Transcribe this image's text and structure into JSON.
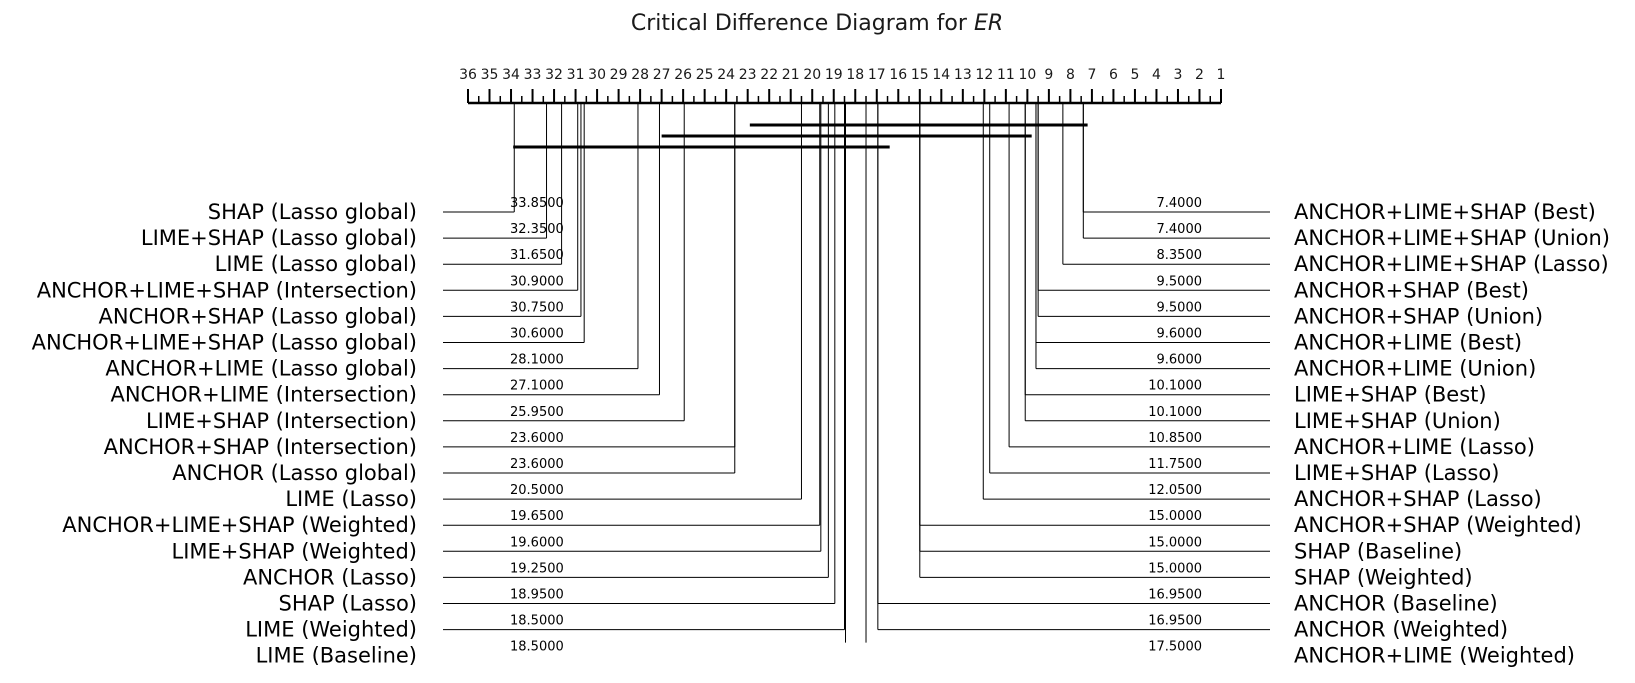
{
  "chart_data": {
    "type": "critical_difference_diagram",
    "title": "Critical Difference Diagram for",
    "title_emphasis": "ER",
    "axis": {
      "min": 1,
      "max": 36,
      "reversed": true,
      "tick_labels": [
        "36",
        "35",
        "34",
        "33",
        "32",
        "31",
        "30",
        "29",
        "28",
        "27",
        "26",
        "25",
        "24",
        "23",
        "22",
        "21",
        "20",
        "19",
        "18",
        "17",
        "16",
        "15",
        "14",
        "13",
        "12",
        "11",
        "10",
        "9",
        "8",
        "7",
        "6",
        "5",
        "4",
        "3",
        "2",
        "1"
      ]
    },
    "left_methods": [
      {
        "name": "SHAP (Lasso global)",
        "rank": 33.85,
        "rank_text": "33.8500"
      },
      {
        "name": "LIME+SHAP (Lasso global)",
        "rank": 32.35,
        "rank_text": "32.3500"
      },
      {
        "name": "LIME (Lasso global)",
        "rank": 31.65,
        "rank_text": "31.6500"
      },
      {
        "name": "ANCHOR+LIME+SHAP (Intersection)",
        "rank": 30.9,
        "rank_text": "30.9000"
      },
      {
        "name": "ANCHOR+SHAP (Lasso global)",
        "rank": 30.75,
        "rank_text": "30.7500"
      },
      {
        "name": "ANCHOR+LIME+SHAP (Lasso global)",
        "rank": 30.6,
        "rank_text": "30.6000"
      },
      {
        "name": "ANCHOR+LIME (Lasso global)",
        "rank": 28.1,
        "rank_text": "28.1000"
      },
      {
        "name": "ANCHOR+LIME (Intersection)",
        "rank": 27.1,
        "rank_text": "27.1000"
      },
      {
        "name": "LIME+SHAP (Intersection)",
        "rank": 25.95,
        "rank_text": "25.9500"
      },
      {
        "name": "ANCHOR+SHAP (Intersection)",
        "rank": 23.6,
        "rank_text": "23.6000"
      },
      {
        "name": "ANCHOR (Lasso global)",
        "rank": 23.6,
        "rank_text": "23.6000"
      },
      {
        "name": "LIME (Lasso)",
        "rank": 20.5,
        "rank_text": "20.5000"
      },
      {
        "name": "ANCHOR+LIME+SHAP (Weighted)",
        "rank": 19.65,
        "rank_text": "19.6500"
      },
      {
        "name": "LIME+SHAP (Weighted)",
        "rank": 19.6,
        "rank_text": "19.6000"
      },
      {
        "name": "ANCHOR (Lasso)",
        "rank": 19.25,
        "rank_text": "19.2500"
      },
      {
        "name": "SHAP (Lasso)",
        "rank": 18.95,
        "rank_text": "18.9500"
      },
      {
        "name": "LIME (Weighted)",
        "rank": 18.5,
        "rank_text": "18.5000"
      },
      {
        "name": "LIME (Baseline)",
        "rank": 18.5,
        "rank_text": "18.5000"
      }
    ],
    "right_methods": [
      {
        "name": "ANCHOR+LIME+SHAP (Best)",
        "rank": 7.4,
        "rank_text": "7.4000"
      },
      {
        "name": "ANCHOR+LIME+SHAP (Union)",
        "rank": 7.4,
        "rank_text": "7.4000"
      },
      {
        "name": "ANCHOR+LIME+SHAP (Lasso)",
        "rank": 8.35,
        "rank_text": "8.3500"
      },
      {
        "name": "ANCHOR+SHAP (Best)",
        "rank": 9.5,
        "rank_text": "9.5000"
      },
      {
        "name": "ANCHOR+SHAP (Union)",
        "rank": 9.5,
        "rank_text": "9.5000"
      },
      {
        "name": "ANCHOR+LIME (Best)",
        "rank": 9.6,
        "rank_text": "9.6000"
      },
      {
        "name": "ANCHOR+LIME (Union)",
        "rank": 9.6,
        "rank_text": "9.6000"
      },
      {
        "name": "LIME+SHAP (Best)",
        "rank": 10.1,
        "rank_text": "10.1000"
      },
      {
        "name": "LIME+SHAP (Union)",
        "rank": 10.1,
        "rank_text": "10.1000"
      },
      {
        "name": "ANCHOR+LIME (Lasso)",
        "rank": 10.85,
        "rank_text": "10.8500"
      },
      {
        "name": "LIME+SHAP (Lasso)",
        "rank": 11.75,
        "rank_text": "11.7500"
      },
      {
        "name": "ANCHOR+SHAP (Lasso)",
        "rank": 12.05,
        "rank_text": "12.0500"
      },
      {
        "name": "ANCHOR+SHAP (Weighted)",
        "rank": 15.0,
        "rank_text": "15.0000"
      },
      {
        "name": "SHAP (Baseline)",
        "rank": 15.0,
        "rank_text": "15.0000"
      },
      {
        "name": "SHAP (Weighted)",
        "rank": 15.0,
        "rank_text": "15.0000"
      },
      {
        "name": "ANCHOR (Baseline)",
        "rank": 16.95,
        "rank_text": "16.9500"
      },
      {
        "name": "ANCHOR (Weighted)",
        "rank": 16.95,
        "rank_text": "16.9500"
      },
      {
        "name": "ANCHOR+LIME (Weighted)",
        "rank": 17.5,
        "rank_text": "17.5000"
      }
    ],
    "cliques": [
      {
        "from": 7.2,
        "to": 22.9
      },
      {
        "from": 9.8,
        "to": 27.0
      },
      {
        "from": 16.4,
        "to": 33.9
      }
    ]
  }
}
